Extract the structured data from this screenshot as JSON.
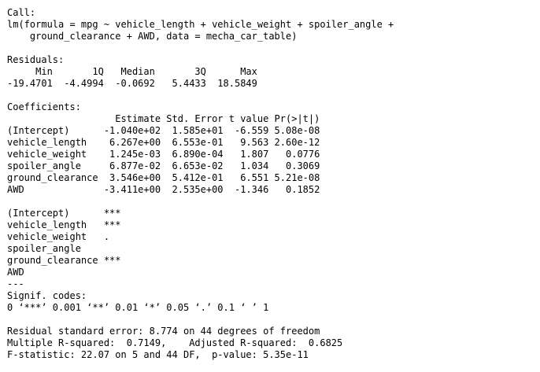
{
  "console": {
    "lines": [
      "Call:",
      "lm(formula = mpg ~ vehicle_length + vehicle_weight + spoiler_angle +",
      "    ground_clearance + AWD, data = mecha_car_table)",
      "",
      "Residuals:",
      "     Min       1Q   Median       3Q      Max",
      "-19.4701  -4.4994  -0.0692   5.4433  18.5849",
      "",
      "Coefficients:",
      "                   Estimate Std. Error t value Pr(>|t|)",
      "(Intercept)      -1.040e+02  1.585e+01  -6.559 5.08e-08",
      "vehicle_length    6.267e+00  6.553e-01   9.563 2.60e-12",
      "vehicle_weight    1.245e-03  6.890e-04   1.807   0.0776",
      "spoiler_angle     6.877e-02  6.653e-02   1.034   0.3069",
      "ground_clearance  3.546e+00  5.412e-01   6.551 5.21e-08",
      "AWD              -3.411e+00  2.535e+00  -1.346   0.1852",
      "",
      "(Intercept)      ***",
      "vehicle_length   ***",
      "vehicle_weight   .",
      "spoiler_angle",
      "ground_clearance ***",
      "AWD",
      "---",
      "Signif. codes:",
      "0 ‘***’ 0.001 ‘**’ 0.01 ‘*’ 0.05 ‘.’ 0.1 ‘ ’ 1",
      "",
      "Residual standard error: 8.774 on 44 degrees of freedom",
      "Multiple R-squared:  0.7149,    Adjusted R-squared:  0.6825",
      "F-statistic: 22.07 on 5 and 44 DF,  p-value: 5.35e-11"
    ]
  }
}
